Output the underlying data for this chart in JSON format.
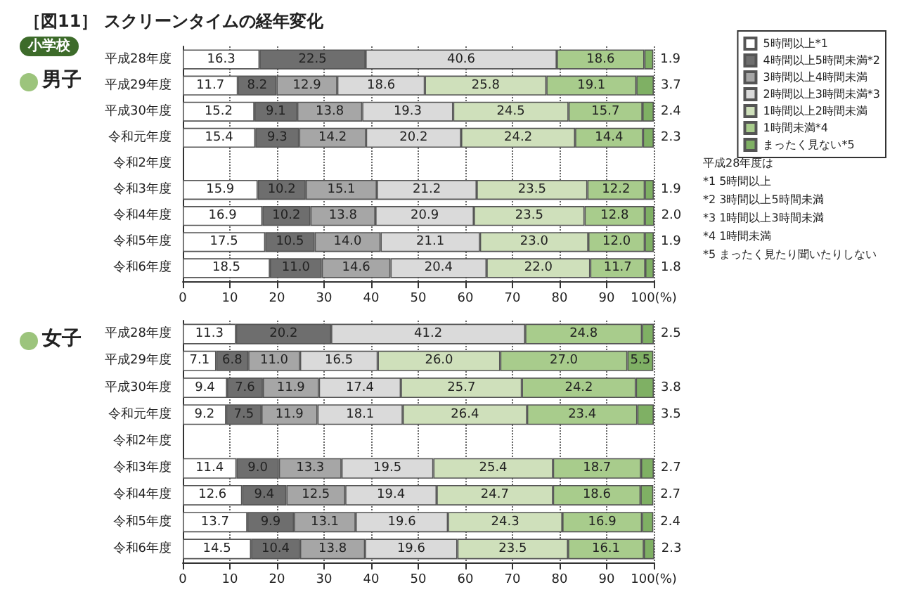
{
  "chart_data": [
    {
      "type": "bar",
      "title": "［図11］ スクリーンタイムの経年変化",
      "subtitle": "小学校",
      "ylabel": "男子",
      "orientation": "horizontal",
      "stacked": true,
      "grid": "x",
      "legend": "right",
      "categories": [
        "平成28年度",
        "平成29年度",
        "平成30年度",
        "令和元年度",
        "令和2年度",
        "令和3年度",
        "令和4年度",
        "令和5年度",
        "令和6年度"
      ],
      "xlim": [
        0,
        100
      ],
      "xticks": [
        0,
        10,
        20,
        30,
        40,
        50,
        60,
        70,
        80,
        90,
        {
          "value": 100,
          "label": "100(%)"
        }
      ],
      "series": [
        {
          "name": "5時間以上*1",
          "color": "#ffffff",
          "values": [
            16.3,
            11.7,
            15.2,
            15.4,
            null,
            15.9,
            16.9,
            17.5,
            18.5
          ],
          "value_labels": [
            "16.3",
            "11.7",
            "15.2",
            "15.4",
            null,
            "15.9",
            "16.9",
            "17.5",
            "18.5"
          ]
        },
        {
          "name": "4時間以上5時間未満*2",
          "color": "#6e6e6e",
          "values": [
            22.5,
            8.2,
            9.1,
            9.3,
            null,
            10.2,
            10.2,
            10.5,
            11.0
          ],
          "value_labels": [
            "22.5",
            "8.2",
            "9.1",
            "9.3",
            null,
            "10.2",
            "10.2",
            "10.5",
            "11.0"
          ]
        },
        {
          "name": "3時間以上4時間未満",
          "color": "#a6a6a6",
          "values": [
            null,
            12.9,
            13.8,
            14.2,
            null,
            15.1,
            13.8,
            14.0,
            14.6
          ],
          "value_labels": [
            null,
            "12.9",
            "13.8",
            "14.2",
            null,
            "15.1",
            "13.8",
            "14.0",
            "14.6"
          ]
        },
        {
          "name": "2時間以上3時間未満*3",
          "color": "#dadada",
          "values": [
            40.6,
            18.6,
            19.3,
            20.2,
            null,
            21.2,
            20.9,
            21.1,
            20.4
          ],
          "value_labels": [
            "40.6",
            "18.6",
            "19.3",
            "20.2",
            null,
            "21.2",
            "20.9",
            "21.1",
            "20.4"
          ]
        },
        {
          "name": "1時間以上2時間未満",
          "color": "#cfe0bb",
          "values": [
            null,
            25.8,
            24.5,
            24.2,
            null,
            23.5,
            23.5,
            23.0,
            22.0
          ],
          "value_labels": [
            null,
            "25.8",
            "24.5",
            "24.2",
            null,
            "23.5",
            "23.5",
            "23.0",
            "22.0"
          ]
        },
        {
          "name": "1時間未満*4",
          "color": "#a8cc8c",
          "values": [
            18.6,
            19.1,
            15.7,
            14.4,
            null,
            12.2,
            12.8,
            12.0,
            11.7
          ],
          "value_labels": [
            "18.6",
            "19.1",
            "15.7",
            "14.4",
            null,
            "12.2",
            "12.8",
            "12.0",
            "11.7"
          ]
        },
        {
          "name": "まったく見ない*5",
          "color": "#7fb064",
          "values": [
            1.9,
            3.7,
            2.4,
            2.3,
            null,
            1.9,
            2.0,
            1.9,
            1.8
          ],
          "value_labels": [
            "1.9",
            "3.7",
            "2.4",
            "2.3",
            null,
            "1.9",
            "2.0",
            "1.9",
            "1.8"
          ]
        }
      ],
      "annotations": [
        "平成28年度は",
        "*1 5時間以上",
        "*2 3時間以上5時間未満",
        "*3 1時間以上3時間未満",
        "*4 1時間未満",
        "*5 まったく見たり聞いたりしない"
      ]
    },
    {
      "type": "bar",
      "ylabel": "女子",
      "orientation": "horizontal",
      "stacked": true,
      "grid": "x",
      "categories": [
        "平成28年度",
        "平成29年度",
        "平成30年度",
        "令和元年度",
        "令和2年度",
        "令和3年度",
        "令和4年度",
        "令和5年度",
        "令和6年度"
      ],
      "xlim": [
        0,
        100
      ],
      "xticks": [
        0,
        10,
        20,
        30,
        40,
        50,
        60,
        70,
        80,
        90,
        {
          "value": 100,
          "label": "100(%)"
        }
      ],
      "series": [
        {
          "color": "#ffffff",
          "values": [
            11.3,
            7.1,
            9.4,
            9.2,
            null,
            11.4,
            12.6,
            13.7,
            14.5
          ],
          "value_labels": [
            "11.3",
            "7.1",
            "9.4",
            "9.2",
            null,
            "11.4",
            "12.6",
            "13.7",
            "14.5"
          ]
        },
        {
          "color": "#6e6e6e",
          "values": [
            20.2,
            6.8,
            7.6,
            7.5,
            null,
            9.0,
            9.4,
            9.9,
            10.4
          ],
          "value_labels": [
            "20.2",
            "6.8",
            "7.6",
            "7.5",
            null,
            "9.0",
            "9.4",
            "9.9",
            "10.4"
          ]
        },
        {
          "color": "#a6a6a6",
          "values": [
            null,
            11.0,
            11.9,
            11.9,
            null,
            13.3,
            12.5,
            13.1,
            13.8
          ],
          "value_labels": [
            null,
            "11.0",
            "11.9",
            "11.9",
            null,
            "13.3",
            "12.5",
            "13.1",
            "13.8"
          ]
        },
        {
          "color": "#dadada",
          "values": [
            41.2,
            16.5,
            17.4,
            18.1,
            null,
            19.5,
            19.4,
            19.6,
            19.6
          ],
          "value_labels": [
            "41.2",
            "16.5",
            "17.4",
            "18.1",
            null,
            "19.5",
            "19.4",
            "19.6",
            "19.6"
          ]
        },
        {
          "color": "#cfe0bb",
          "values": [
            null,
            26.0,
            25.7,
            26.4,
            null,
            25.4,
            24.7,
            24.3,
            23.5
          ],
          "value_labels": [
            null,
            "26.0",
            "25.7",
            "26.4",
            null,
            "25.4",
            "24.7",
            "24.3",
            "23.5"
          ]
        },
        {
          "color": "#a8cc8c",
          "values": [
            24.8,
            27.0,
            24.2,
            23.4,
            null,
            18.7,
            18.6,
            16.9,
            16.1
          ],
          "value_labels": [
            "24.8",
            "27.0",
            "24.2",
            "23.4",
            null,
            "18.7",
            "18.6",
            "16.9",
            "16.1"
          ]
        },
        {
          "color": "#7fb064",
          "values": [
            2.5,
            5.5,
            3.8,
            3.5,
            null,
            2.7,
            2.7,
            2.4,
            2.3
          ],
          "value_labels": [
            "2.5",
            "5.5",
            "3.8",
            "3.5",
            null,
            "2.7",
            "2.7",
            "2.4",
            "2.3"
          ]
        }
      ]
    }
  ]
}
